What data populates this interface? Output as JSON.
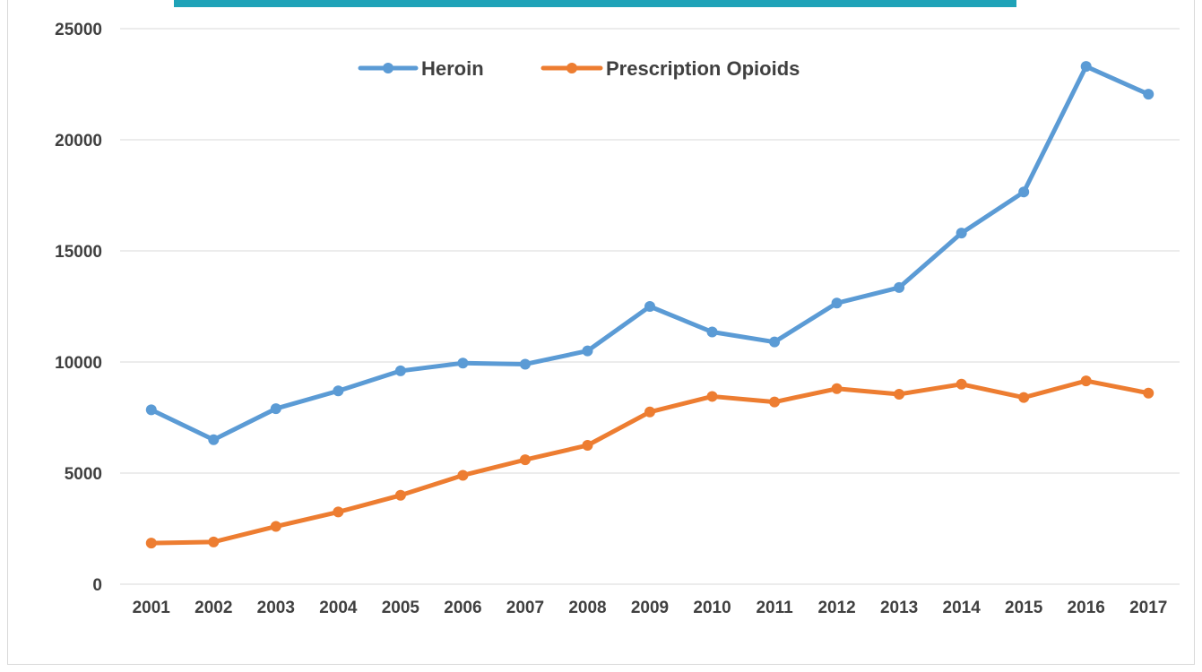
{
  "chart_data": {
    "type": "line",
    "title": "",
    "xlabel": "",
    "ylabel": "",
    "categories": [
      "2001",
      "2002",
      "2003",
      "2004",
      "2005",
      "2006",
      "2007",
      "2008",
      "2009",
      "2010",
      "2011",
      "2012",
      "2013",
      "2014",
      "2015",
      "2016",
      "2017"
    ],
    "ylim": [
      0,
      25000
    ],
    "yticks": [
      "0",
      "5000",
      "10000",
      "15000",
      "20000",
      "25000"
    ],
    "grid": true,
    "legend_position": "top",
    "series": [
      {
        "name": "Heroin",
        "color": "#5b9bd5",
        "values": [
          7850,
          6500,
          7900,
          8700,
          9600,
          9950,
          9900,
          10500,
          12500,
          11350,
          10900,
          12650,
          13350,
          15800,
          17650,
          23300,
          22050
        ]
      },
      {
        "name": "Prescription Opioids",
        "color": "#ed7d31",
        "values": [
          1850,
          1900,
          2600,
          3250,
          4000,
          4900,
          5600,
          6250,
          7750,
          8450,
          8200,
          8800,
          8550,
          9000,
          8400,
          9150,
          8600
        ]
      }
    ]
  },
  "colors": {
    "banner": "#1fa3b8",
    "gridline": "#d9d9d9",
    "text": "#404040"
  }
}
